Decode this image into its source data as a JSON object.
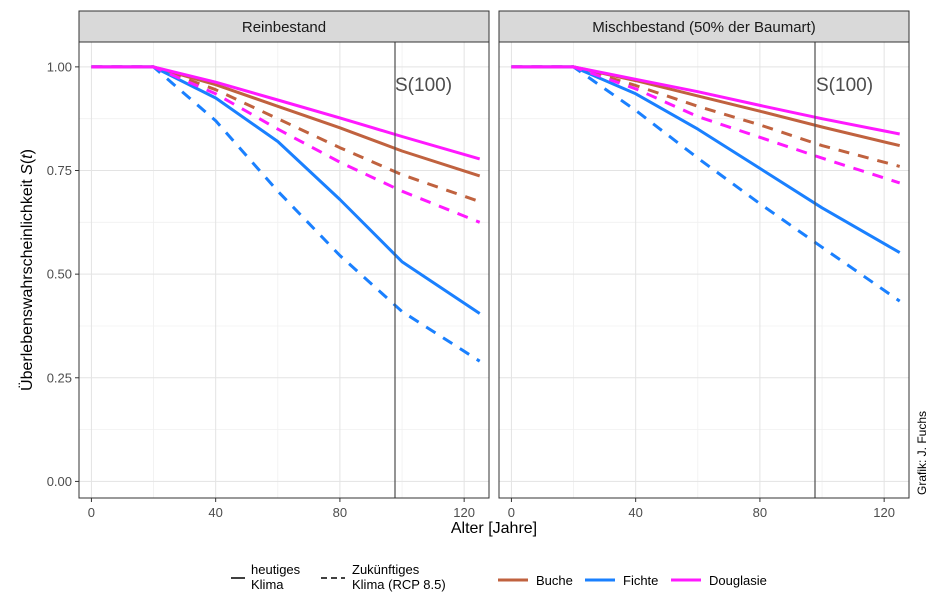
{
  "chart_data": [
    {
      "type": "line",
      "title": "Reinbestand",
      "xlabel": "Alter [Jahre]",
      "ylabel": "Überlebenswahrscheinlichkeit S(t)",
      "xlim": [
        -4,
        128
      ],
      "ylim": [
        -0.04,
        1.06
      ],
      "xticks": [
        0,
        40,
        80,
        120
      ],
      "yticks": [
        0.0,
        0.25,
        0.5,
        0.75,
        1.0
      ],
      "grid": true,
      "vline": {
        "x": 100,
        "label": "S(100)"
      },
      "series": [
        {
          "name": "Buche",
          "climate": "heutiges Klima",
          "x": [
            0,
            20,
            40,
            60,
            80,
            100,
            125
          ],
          "y": [
            1.0,
            1.0,
            0.957,
            0.905,
            0.853,
            0.797,
            0.737
          ]
        },
        {
          "name": "Buche",
          "climate": "Zukünftiges Klima (RCP 8.5)",
          "x": [
            0,
            20,
            40,
            60,
            80,
            100,
            125
          ],
          "y": [
            1.0,
            1.0,
            0.945,
            0.875,
            0.805,
            0.74,
            0.675
          ]
        },
        {
          "name": "Fichte",
          "climate": "heutiges Klima",
          "x": [
            0,
            20,
            40,
            60,
            80,
            100,
            125
          ],
          "y": [
            1.0,
            1.0,
            0.925,
            0.82,
            0.68,
            0.53,
            0.405
          ]
        },
        {
          "name": "Fichte",
          "climate": "Zukünftiges Klima (RCP 8.5)",
          "x": [
            0,
            20,
            40,
            60,
            80,
            100,
            125
          ],
          "y": [
            1.0,
            1.0,
            0.87,
            0.7,
            0.545,
            0.41,
            0.29
          ]
        },
        {
          "name": "Douglasie",
          "climate": "heutiges Klima",
          "x": [
            0,
            20,
            40,
            60,
            80,
            100,
            125
          ],
          "y": [
            1.0,
            1.0,
            0.963,
            0.92,
            0.877,
            0.832,
            0.778
          ]
        },
        {
          "name": "Douglasie",
          "climate": "Zukünftiges Klima (RCP 8.5)",
          "x": [
            0,
            20,
            40,
            60,
            80,
            100,
            125
          ],
          "y": [
            1.0,
            1.0,
            0.935,
            0.85,
            0.77,
            0.7,
            0.625
          ]
        }
      ]
    },
    {
      "type": "line",
      "title": "Mischbestand (50% der Baumart)",
      "xlabel": "Alter [Jahre]",
      "ylabel": "Überlebenswahrscheinlichkeit S(t)",
      "xlim": [
        -4,
        128
      ],
      "ylim": [
        -0.04,
        1.06
      ],
      "xticks": [
        0,
        40,
        80,
        120
      ],
      "yticks": [
        0.0,
        0.25,
        0.5,
        0.75,
        1.0
      ],
      "grid": true,
      "vline": {
        "x": 100,
        "label": "S(100)"
      },
      "series": [
        {
          "name": "Buche",
          "climate": "heutiges Klima",
          "x": [
            0,
            20,
            40,
            60,
            80,
            100,
            125
          ],
          "y": [
            1.0,
            1.0,
            0.967,
            0.93,
            0.893,
            0.855,
            0.81
          ]
        },
        {
          "name": "Buche",
          "climate": "Zukünftiges Klima (RCP 8.5)",
          "x": [
            0,
            20,
            40,
            60,
            80,
            100,
            125
          ],
          "y": [
            1.0,
            1.0,
            0.955,
            0.905,
            0.86,
            0.81,
            0.76
          ]
        },
        {
          "name": "Fichte",
          "climate": "heutiges Klima",
          "x": [
            0,
            20,
            40,
            60,
            80,
            100,
            125
          ],
          "y": [
            1.0,
            1.0,
            0.935,
            0.85,
            0.755,
            0.66,
            0.552
          ]
        },
        {
          "name": "Fichte",
          "climate": "Zukünftiges Klima (RCP 8.5)",
          "x": [
            0,
            20,
            40,
            60,
            80,
            100,
            125
          ],
          "y": [
            1.0,
            1.0,
            0.895,
            0.78,
            0.67,
            0.565,
            0.435
          ]
        },
        {
          "name": "Douglasie",
          "climate": "heutiges Klima",
          "x": [
            0,
            20,
            40,
            60,
            80,
            100,
            125
          ],
          "y": [
            1.0,
            1.0,
            0.97,
            0.94,
            0.907,
            0.875,
            0.838
          ]
        },
        {
          "name": "Douglasie",
          "climate": "Zukünftiges Klima (RCP 8.5)",
          "x": [
            0,
            20,
            40,
            60,
            80,
            100,
            125
          ],
          "y": [
            1.0,
            1.0,
            0.947,
            0.88,
            0.83,
            0.78,
            0.72
          ]
        }
      ]
    }
  ],
  "legend": {
    "linetype": [
      {
        "label_line1": "heutiges",
        "label_line2": "Klima",
        "style": "solid"
      },
      {
        "label_line1": "Zukünftiges",
        "label_line2": "Klima (RCP 8.5)",
        "style": "dashed"
      }
    ],
    "species": [
      {
        "label": "Buche",
        "color": "#c0623f"
      },
      {
        "label": "Fichte",
        "color": "#1a80ff"
      },
      {
        "label": "Douglasie",
        "color": "#ff19ff"
      }
    ]
  },
  "colors": {
    "Buche": "#c0623f",
    "Fichte": "#1a80ff",
    "Douglasie": "#ff19ff"
  },
  "credit": "Grafik: J. Fuchs"
}
